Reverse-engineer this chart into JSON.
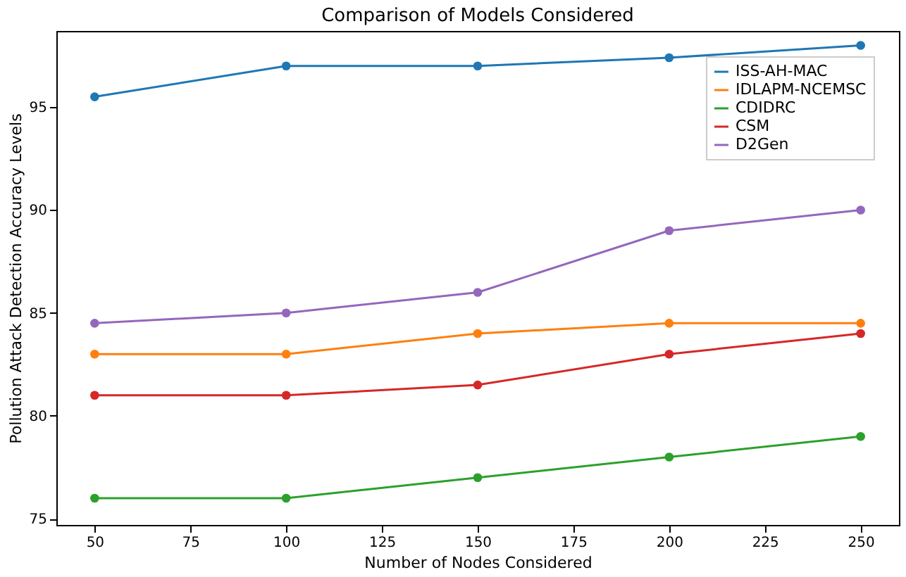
{
  "chart_data": {
    "type": "line",
    "title": "Comparison of Models Considered",
    "xlabel": "Number of Nodes Considered",
    "ylabel": "Pollution Attack Detection Accuracy Levels",
    "x": [
      50,
      100,
      150,
      200,
      250
    ],
    "series": [
      {
        "name": "ISS-AH-MAC",
        "color": "#1f77b4",
        "values": [
          95.5,
          97,
          97,
          97.4,
          98
        ]
      },
      {
        "name": "IDLAPM-NCEMSC",
        "color": "#ff7f0e",
        "values": [
          83,
          83,
          84,
          84.5,
          84.5
        ]
      },
      {
        "name": "CDIDRC",
        "color": "#2ca02c",
        "values": [
          76,
          76,
          77,
          78,
          79
        ]
      },
      {
        "name": "CSM",
        "color": "#d62728",
        "values": [
          81,
          81,
          81.5,
          83,
          84
        ]
      },
      {
        "name": "D2Gen",
        "color": "#9467bd",
        "values": [
          84.5,
          85,
          86,
          89,
          90
        ]
      }
    ],
    "xlim": [
      40,
      260
    ],
    "xticks": [
      50,
      75,
      100,
      125,
      150,
      175,
      200,
      225,
      250
    ],
    "ylim": [
      74.7,
      98.7
    ],
    "yticks": [
      75,
      80,
      85,
      90,
      95
    ],
    "grid": false,
    "legend": "top right",
    "marker": "circle",
    "line_style": "solid"
  }
}
